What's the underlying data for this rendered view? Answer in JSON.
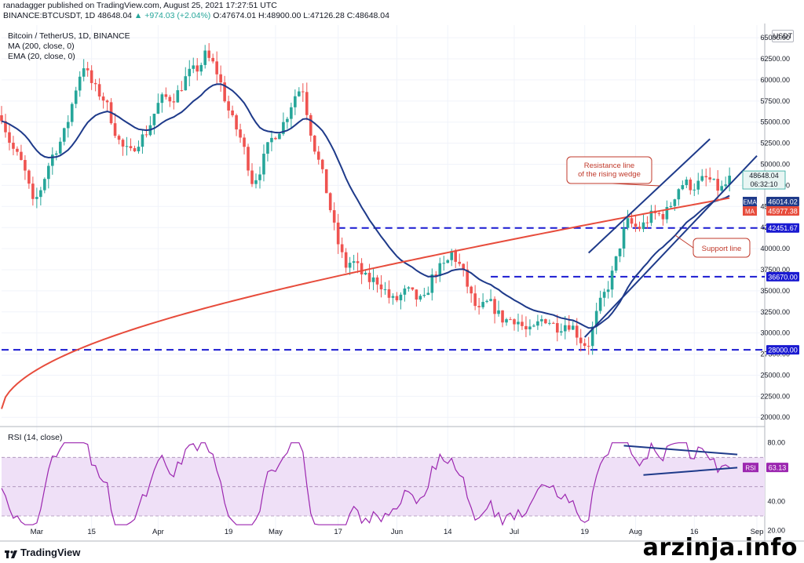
{
  "header": {
    "line1": "ranadagger published on TradingView.com, August 25, 2021 17:27:51 UTC",
    "symbol": "BINANCE:BTCUSDT, 1D",
    "last": "48648.04",
    "change": "▲ +974.03 (+2.04%)",
    "ohlc": "O:47674.01 H:48900.00 L:47126.28 C:48648.04"
  },
  "indicators": {
    "title": "Bitcoin / TetherUS, 1D, BINANCE",
    "ma": "MA (200, close, 0)",
    "ema": "EMA (20, close, 0)",
    "rsi": "RSI (14, close)"
  },
  "currency": "USDT",
  "brand": "TradingView",
  "watermark": "arzinja.info",
  "chart_data": [
    {
      "type": "line",
      "title": "Bitcoin / TetherUS, 1D, BINANCE",
      "series_type": "candlestick",
      "y_axis_ticks": [
        20000,
        22500,
        25000,
        27500,
        30000,
        32500,
        35000,
        37500,
        40000,
        42500,
        45000,
        47500,
        50000,
        52500,
        55000,
        57500,
        60000,
        62500,
        65000
      ],
      "ylim": [
        19000,
        66500
      ],
      "x_tick_labels": [
        "Mar",
        "15",
        "Apr",
        "19",
        "May",
        "17",
        "Jun",
        "14",
        "Jul",
        "19",
        "Aug",
        "16",
        "Sep"
      ],
      "price_path_key_closes": [
        {
          "date": "2021-02-20",
          "close": 56000
        },
        {
          "date": "2021-02-28",
          "close": 45000
        },
        {
          "date": "2021-03-13",
          "close": 61000
        },
        {
          "date": "2021-03-25",
          "close": 51500
        },
        {
          "date": "2021-04-13",
          "close": 63500
        },
        {
          "date": "2021-04-25",
          "close": 49000
        },
        {
          "date": "2021-05-08",
          "close": 58500
        },
        {
          "date": "2021-05-19",
          "close": 37500
        },
        {
          "date": "2021-06-08",
          "close": 33500
        },
        {
          "date": "2021-06-15",
          "close": 40500
        },
        {
          "date": "2021-06-22",
          "close": 32500
        },
        {
          "date": "2021-07-20",
          "close": 29800
        },
        {
          "date": "2021-07-30",
          "close": 42000
        },
        {
          "date": "2021-08-14",
          "close": 47000
        },
        {
          "date": "2021-08-25",
          "close": 48648.04
        }
      ],
      "ma200_label": "MA",
      "ma200_value": "45977.38",
      "ma200_color": "#e74c3c",
      "ema20_label": "EMA",
      "ema20_value": "46014.02",
      "ema20_color": "#1e3a8a",
      "last_price": "48648.04",
      "countdown": "06:32:10",
      "horizontal_levels": [
        {
          "value": 42451.67,
          "label": "42451.67"
        },
        {
          "value": 36670.0,
          "label": "36670.00"
        },
        {
          "value": 28000.0,
          "label": "28000.00"
        }
      ],
      "annotations": [
        {
          "text": "Resistance line\nof the rising wedge"
        },
        {
          "text": "Support line"
        }
      ]
    },
    {
      "type": "line",
      "title": "RSI (14, close)",
      "y_axis_ticks": [
        20,
        40,
        60,
        80
      ],
      "ylim": [
        15,
        90
      ],
      "band": [
        30,
        70
      ],
      "current": "63.13",
      "label": "RSI",
      "line_color": "#9c27b0"
    }
  ],
  "colors": {
    "up": "#26a69a",
    "down": "#ef5350",
    "ma": "#e74c3c",
    "ema": "#1e3a8a",
    "level": "#1a1ad1",
    "rsi": "#9c27b0",
    "annotation": "#c0392b"
  }
}
